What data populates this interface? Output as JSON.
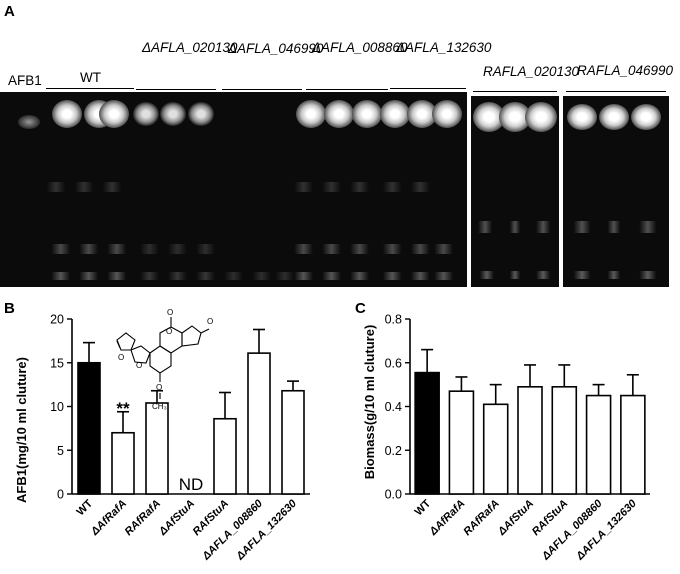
{
  "panel_a": {
    "letter": "A",
    "afb1_label": "AFB1",
    "groups": [
      {
        "label": "WT"
      },
      {
        "label": "ΔAFLA_020130"
      },
      {
        "label": "ΔAFLA_046990"
      },
      {
        "label": "ΔAFLA_008860"
      },
      {
        "label": "ΔAFLA_132630"
      },
      {
        "label": "RAFLA_020130"
      },
      {
        "label": "RAFLA_046990"
      }
    ]
  },
  "chart_data": [
    {
      "panel": "B",
      "type": "bar",
      "ylabel": "AFB1(mg/10 ml cluture)",
      "ylim": [
        0,
        20
      ],
      "yticks": [
        0,
        5,
        10,
        15,
        20
      ],
      "categories": [
        "WT",
        "ΔAfRafA",
        "RAfRafA",
        "ΔAfStuA",
        "RAfStuA",
        "ΔAFLA_008860",
        "ΔAFLA_132630"
      ],
      "values": [
        15.0,
        7.0,
        10.4,
        null,
        8.6,
        16.1,
        11.8
      ],
      "errors": [
        2.3,
        2.4,
        1.4,
        null,
        3.0,
        2.7,
        1.1
      ],
      "fills": [
        "#000000",
        "#ffffff",
        "#ffffff",
        "#ffffff",
        "#ffffff",
        "#ffffff",
        "#ffffff"
      ],
      "annotations": [
        {
          "category": "ΔAfRafA",
          "text": "**"
        },
        {
          "category": "ΔAfStuA",
          "text": "ND"
        }
      ],
      "inset": "chemical structure of aflatoxin B1",
      "methoxy_label": "CH₃"
    },
    {
      "panel": "C",
      "type": "bar",
      "ylabel": "Biomass(g/10 ml cluture)",
      "ylim": [
        0,
        0.8
      ],
      "yticks": [
        "0.0",
        "0.2",
        "0.4",
        "0.6",
        "0.8"
      ],
      "categories": [
        "WT",
        "ΔAfRafA",
        "RAfRafA",
        "ΔAfStuA",
        "RAfStuA",
        "ΔAFLA_008860",
        "ΔAFLA_132630"
      ],
      "values": [
        0.555,
        0.47,
        0.41,
        0.49,
        0.49,
        0.45,
        0.45
      ],
      "errors": [
        0.105,
        0.065,
        0.09,
        0.1,
        0.1,
        0.05,
        0.095
      ],
      "fills": [
        "#000000",
        "#ffffff",
        "#ffffff",
        "#ffffff",
        "#ffffff",
        "#ffffff",
        "#ffffff"
      ]
    }
  ]
}
